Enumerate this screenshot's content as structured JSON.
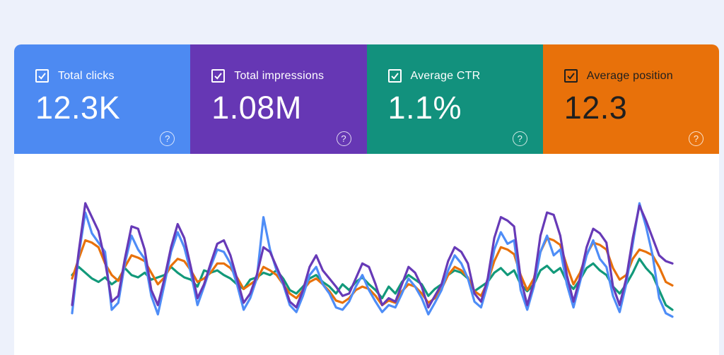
{
  "page": {
    "background_color": "#edf1fb",
    "panel_color": "#ffffff"
  },
  "ui": {
    "help_glyph": "?"
  },
  "cards": [
    {
      "label": "Total clicks",
      "value": "12.3K",
      "checked": true,
      "color": "#4d8af2",
      "text_color": "#ffffff"
    },
    {
      "label": "Total impressions",
      "value": "1.08M",
      "checked": true,
      "color": "#6637b4",
      "text_color": "#ffffff"
    },
    {
      "label": "Average CTR",
      "value": "1.1%",
      "checked": true,
      "color": "#12917d",
      "text_color": "#ffffff"
    },
    {
      "label": "Average position",
      "value": "12.3",
      "checked": true,
      "color": "#e8710a",
      "text_color": "#1f1f1f"
    }
  ],
  "chart_data": {
    "type": "line",
    "title": "",
    "xlabel": "",
    "ylabel": "",
    "grid": false,
    "legend_position": "none (series colors match the metric cards above)",
    "x_axis_labels_visible": false,
    "y_axis_labels_visible": false,
    "note": "Daily time series over ~13 weekly cycles; no axis ticks visible, values estimated on a normalized 0-100 scale from line heights",
    "ylim": [
      0,
      100
    ],
    "series": [
      {
        "name": "Average CTR",
        "color": "#12997a",
        "values": [
          38,
          45,
          40,
          35,
          32,
          36,
          30,
          34,
          44,
          38,
          36,
          40,
          34,
          36,
          38,
          45,
          40,
          36,
          34,
          28,
          42,
          40,
          42,
          38,
          35,
          30,
          26,
          34,
          36,
          40,
          38,
          42,
          35,
          25,
          22,
          28,
          35,
          38,
          32,
          28,
          22,
          30,
          25,
          32,
          36,
          30,
          25,
          18,
          28,
          22,
          32,
          38,
          34,
          30,
          20,
          26,
          30,
          38,
          42,
          40,
          35,
          24,
          28,
          32,
          40,
          44,
          38,
          42,
          30,
          24,
          30,
          42,
          46,
          40,
          44,
          32,
          26,
          34,
          44,
          48,
          42,
          38,
          28,
          22,
          30,
          40,
          52,
          44,
          38,
          25,
          12,
          8
        ]
      },
      {
        "name": "Average position",
        "color": "#e8710a",
        "values": [
          35,
          52,
          68,
          66,
          62,
          48,
          38,
          33,
          45,
          55,
          53,
          50,
          40,
          30,
          36,
          46,
          52,
          50,
          42,
          32,
          35,
          40,
          48,
          48,
          44,
          36,
          26,
          30,
          34,
          45,
          42,
          38,
          30,
          22,
          18,
          25,
          32,
          35,
          30,
          24,
          16,
          14,
          18,
          25,
          28,
          26,
          20,
          12,
          16,
          14,
          24,
          30,
          28,
          22,
          14,
          18,
          26,
          38,
          45,
          42,
          36,
          24,
          20,
          32,
          50,
          62,
          60,
          56,
          38,
          25,
          35,
          58,
          70,
          68,
          64,
          46,
          30,
          40,
          56,
          66,
          64,
          60,
          44,
          34,
          38,
          52,
          60,
          58,
          55,
          45,
          32,
          29
        ]
      },
      {
        "name": "Total clicks",
        "color": "#4e8df7",
        "values": [
          5,
          55,
          92,
          74,
          66,
          58,
          8,
          14,
          48,
          72,
          60,
          52,
          20,
          4,
          30,
          58,
          75,
          62,
          40,
          12,
          28,
          45,
          60,
          58,
          48,
          30,
          8,
          18,
          35,
          88,
          60,
          42,
          30,
          12,
          6,
          20,
          38,
          45,
          30,
          22,
          10,
          8,
          15,
          28,
          38,
          25,
          15,
          6,
          12,
          10,
          22,
          35,
          28,
          18,
          4,
          14,
          25,
          42,
          55,
          48,
          35,
          15,
          10,
          30,
          60,
          75,
          65,
          68,
          25,
          8,
          28,
          58,
          72,
          55,
          60,
          30,
          10,
          32,
          55,
          68,
          52,
          45,
          20,
          6,
          30,
          65,
          100,
          80,
          55,
          18,
          5,
          2
        ]
      },
      {
        "name": "Total impressions",
        "color": "#673ab7",
        "values": [
          12,
          58,
          100,
          88,
          76,
          50,
          15,
          20,
          52,
          80,
          78,
          60,
          25,
          12,
          35,
          62,
          82,
          70,
          45,
          18,
          30,
          48,
          65,
          68,
          55,
          35,
          14,
          22,
          38,
          62,
          58,
          45,
          32,
          15,
          10,
          25,
          45,
          55,
          42,
          35,
          28,
          20,
          22,
          35,
          48,
          45,
          30,
          12,
          18,
          15,
          30,
          45,
          40,
          28,
          10,
          20,
          30,
          50,
          62,
          58,
          48,
          22,
          15,
          35,
          70,
          88,
          85,
          80,
          35,
          12,
          32,
          72,
          92,
          90,
          72,
          38,
          15,
          36,
          62,
          78,
          74,
          66,
          28,
          12,
          35,
          70,
          98,
          85,
          70,
          55,
          50,
          48
        ]
      }
    ]
  }
}
